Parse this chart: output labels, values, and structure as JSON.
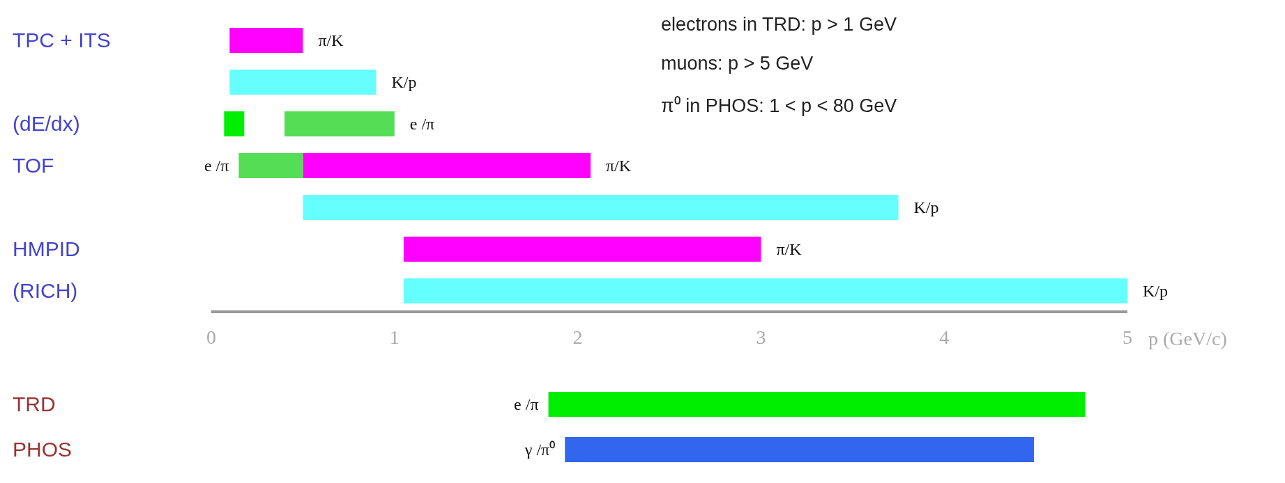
{
  "chart_data": [
    {
      "type": "bar",
      "orientation": "horizontal",
      "categories": [
        "TPC + ITS",
        null,
        "(dE/dx)",
        "TOF",
        null,
        "HMPID",
        "(RICH)"
      ],
      "series": [
        {
          "colors": [
            "#ff00ff",
            "#66ffff",
            "#00ee00",
            "#ff00ff",
            "#66ffff",
            "#ff00ff",
            "#66ffff"
          ],
          "base": [
            0.1,
            0.1,
            0.07,
            0.5,
            0.5,
            1.05,
            1.05
          ],
          "values": [
            0.4,
            0.8,
            0.11,
            1.57,
            3.25,
            1.95,
            3.95
          ],
          "value_labels": [
            "π/K",
            "K/p",
            null,
            "π/K",
            "K/p",
            "π/K",
            "K/p"
          ]
        },
        {
          "color": "#55dd55",
          "base": [
            null,
            null,
            0.4,
            0.15,
            null,
            null,
            null
          ],
          "values": [
            null,
            null,
            0.6,
            0.35,
            null,
            null,
            null
          ],
          "value_labels": [
            null,
            null,
            "e /π",
            "e /π",
            null,
            null,
            null
          ]
        }
      ],
      "xlim": [
        0,
        5
      ],
      "xticks": [
        0,
        1,
        2,
        3,
        4,
        5
      ],
      "xlabel": "p (GeV/c)",
      "annotations": [
        "electrons in TRD: p > 1 GeV",
        "muons: p > 5 GeV",
        "π⁰ in PHOS: 1 < p < 80 GeV"
      ]
    },
    {
      "type": "bar",
      "orientation": "horizontal",
      "categories": [
        "TRD",
        "PHOS"
      ],
      "colors": [
        "#00ee00",
        "#3366ee"
      ],
      "base": [
        1.84,
        1.93
      ],
      "values": [
        2.93,
        2.56
      ],
      "value_labels": [
        "e /π",
        "γ /π⁰"
      ],
      "xlim": [
        0,
        5
      ],
      "tick_labels": "y"
    }
  ]
}
